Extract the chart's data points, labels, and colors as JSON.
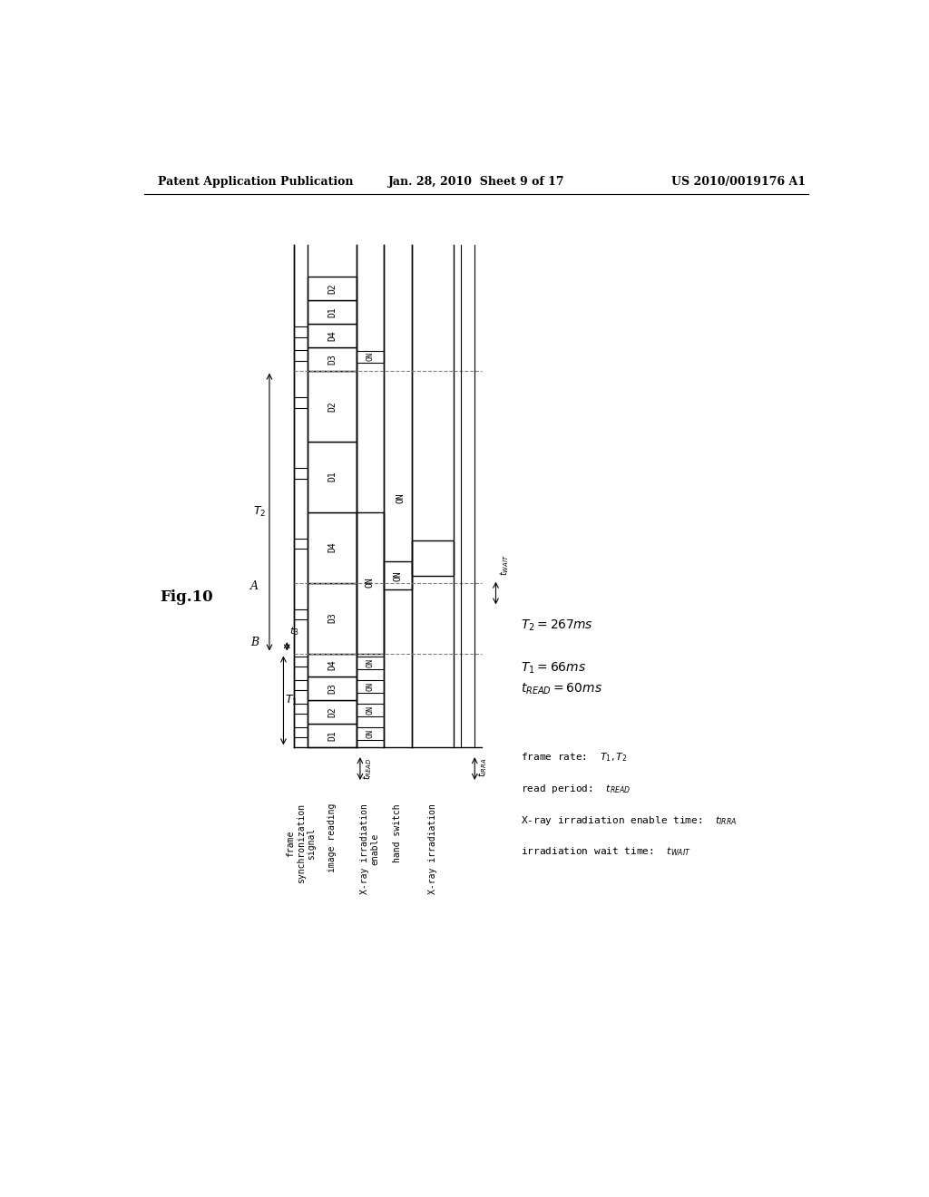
{
  "title_left": "Patent Application Publication",
  "title_center": "Jan. 28, 2010  Sheet 9 of 17",
  "title_right": "US 2010/0019176 A1",
  "fig_label": "Fig.10",
  "bg_color": "#ffffff",
  "header_fontsize": 9,
  "fig_label_fontsize": 12,
  "signal_label_fontsize": 8,
  "annotation_fontsize": 8,
  "legend_fontsize": 9,
  "row_labels": [
    "frame\nsynchronization\nsignal",
    "image reading",
    "X-ray irradiation\nenable",
    "hand switch",
    "X-ray irradiation"
  ],
  "T2_text": "T$_2$=267ms",
  "T1_text": "T$_1$=66ms",
  "tREAD_text": "t$_{READ}$=60ms",
  "frame_rate_text": "frame rate:  T$_1$, T$_2$",
  "read_period_text": "read period:  t$_{READ}$",
  "xray_enable_text": "X-ray irradiation enable time:  t$_{IRRA}$",
  "irr_wait_text": "irradiation wait time:  t$_{WAIT}$"
}
